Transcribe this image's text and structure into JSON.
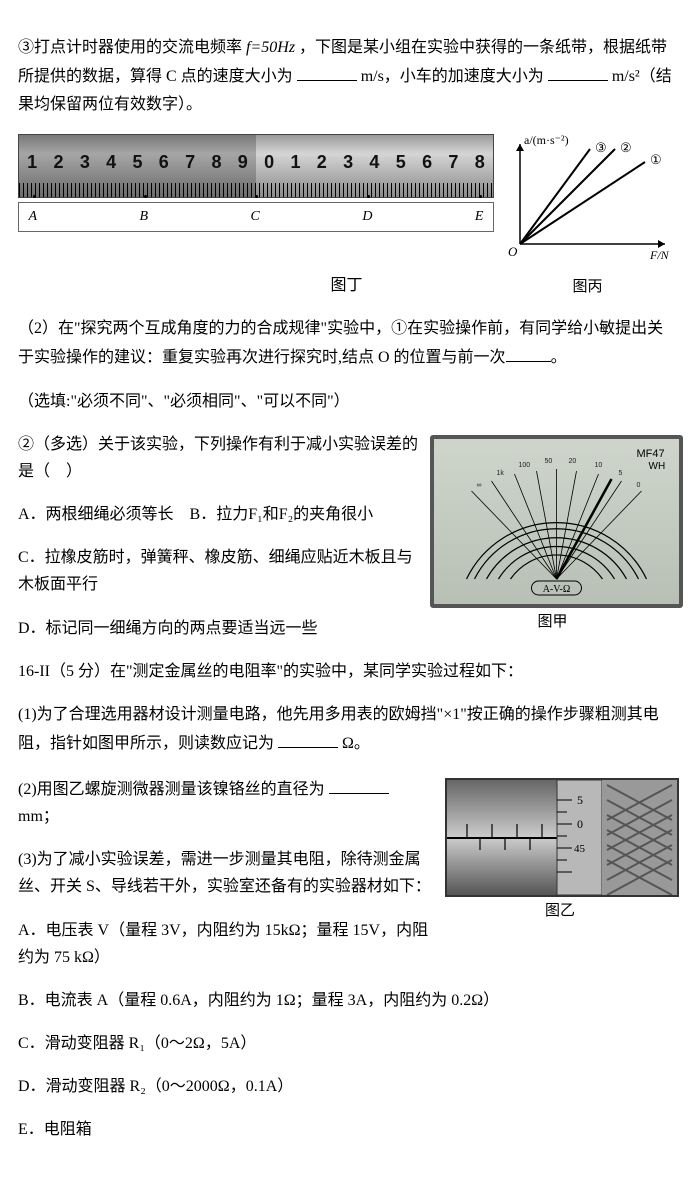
{
  "q3": {
    "text_a": "③打点计时器使用的交流电频率",
    "freq": "f=50Hz",
    "text_b": "，下图是某小组在实验中获得的一条纸带，根据纸带所提供的数据，算得 C 点的速度大小为",
    "unit1": "m/s，小车的加速度大小为",
    "unit2": "m/s²（结果均保留两位有效数字）。"
  },
  "ruler": {
    "nums": [
      "1",
      "2",
      "3",
      "4",
      "5",
      "6",
      "7",
      "8",
      "9",
      "0",
      "1",
      "2",
      "3",
      "4",
      "5",
      "6",
      "7",
      "8"
    ]
  },
  "tape": {
    "points": [
      "A",
      "B",
      "C",
      "D",
      "E"
    ]
  },
  "graph": {
    "y_axis": "a/(m·s⁻²)",
    "x_axis": "F/N",
    "origin": "O",
    "labels": [
      "③",
      "②",
      "①"
    ],
    "caption": "图丙"
  },
  "figding": "图丁",
  "p2": {
    "lead": "（2）在\"探究两个互成角度的力的合成规律\"实验中，①在实验操作前，有同学给小敏提出关于实验操作的建议：重复实验再次进行探究时,结点 O 的位置与前一次",
    "period": "。",
    "hint": "（选填:\"必须不同\"、\"必须相同\"、\"可以不同\"）",
    "multi": "②（多选）关于该实验，下列操作有利于减小实验误差的是（　）",
    "optA": "A．两根细绳必须等长　B．拉力F₁和F₂的夹角很小",
    "optC": "C．拉橡皮筋时，弹簧秤、橡皮筋、细绳应贴近木板且与木板面平行",
    "optD": "D．标记同一细绳方向的两点要适当远一些"
  },
  "p16": {
    "lead": "16-II（5 分）在\"测定金属丝的电阻率\"的实验中，某同学实验过程如下：",
    "s1a": "(1)为了合理选用器材设计测量电路，他先用多用表的欧姆挡\"×1\"按正确的操作步骤粗测其电阻，指针如图甲所示，则读数应记为",
    "s1u": "Ω。",
    "s2a": "(2)用图乙螺旋测微器测量该镍铬丝的直径为",
    "s2u": "mm；",
    "s3": "(3)为了减小实验误差，需进一步测量其电阻，除待测金属丝、开关 S、导线若干外，实验室还备有的实验器材如下：",
    "optA": "A．电压表 V（量程 3V，内阻约为 15kΩ；量程 15V，内阻约为 75 kΩ）",
    "optB": "B．电流表 A（量程 0.6A，内阻约为 1Ω；量程 3A，内阻约为 0.2Ω）",
    "optC": "C．滑动变阻器 R₁（0～2Ω，5A）",
    "optD": "D．滑动变阻器 R₂（0～2000Ω，0.1A）",
    "optE": "E．电阻箱"
  },
  "meter": {
    "caption": "图甲",
    "label_top": "MF47",
    "label_top2": "WH",
    "center": "A-V-Ω"
  },
  "micrometer": {
    "caption": "图乙",
    "marks": [
      "5",
      "0",
      "45"
    ]
  }
}
